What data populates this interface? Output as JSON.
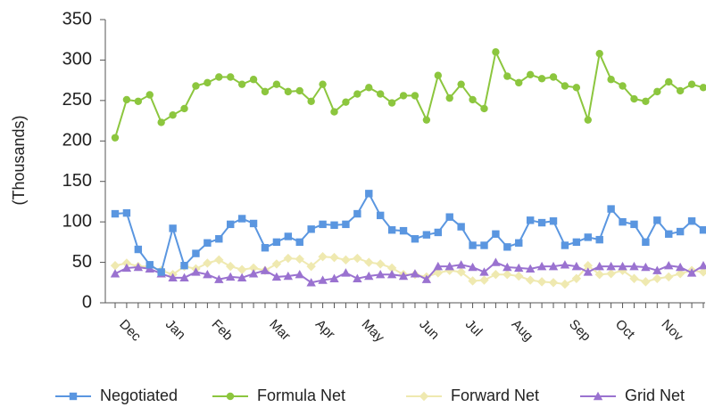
{
  "chart_data": {
    "type": "line",
    "y_label": "(Thousands)",
    "categories": [
      null,
      "Dec",
      null,
      null,
      null,
      "Jan",
      null,
      null,
      null,
      "Feb",
      null,
      null,
      null,
      null,
      "Mar",
      null,
      null,
      null,
      "Apr",
      null,
      null,
      null,
      "May",
      null,
      null,
      null,
      null,
      "Jun",
      null,
      null,
      null,
      "Jul",
      null,
      null,
      null,
      "Aug",
      null,
      null,
      null,
      null,
      "Sep",
      null,
      null,
      null,
      "Oct",
      null,
      null,
      null,
      "Nov",
      null,
      null,
      null
    ],
    "ylim": [
      0,
      350
    ],
    "yticks": [
      0,
      50,
      100,
      150,
      200,
      250,
      300,
      350
    ],
    "legend": "bottom",
    "series": [
      {
        "name": "Negotiated",
        "color": "#5a96e0",
        "marker": "square",
        "values": [
          110,
          111,
          66,
          47,
          38,
          92,
          46,
          61,
          74,
          79,
          97,
          104,
          98,
          68,
          75,
          82,
          75,
          91,
          97,
          96,
          97,
          110,
          135,
          108,
          90,
          89,
          79,
          84,
          87,
          106,
          94,
          71,
          71,
          85,
          69,
          74,
          102,
          99,
          101,
          71,
          75,
          81,
          78,
          116,
          100,
          97,
          75,
          102,
          85,
          88,
          101,
          90
        ]
      },
      {
        "name": "Formula Net",
        "color": "#8cc63e",
        "marker": "circle",
        "values": [
          204,
          251,
          249,
          257,
          223,
          232,
          240,
          268,
          272,
          279,
          279,
          270,
          276,
          261,
          270,
          261,
          262,
          249,
          270,
          236,
          248,
          258,
          266,
          258,
          247,
          256,
          256,
          226,
          281,
          253,
          270,
          251,
          240,
          310,
          280,
          272,
          282,
          277,
          279,
          268,
          266,
          226,
          308,
          276,
          268,
          252,
          249,
          261,
          273,
          262,
          270,
          266
        ]
      },
      {
        "name": "Forward Net",
        "color": "#efe9b0",
        "marker": "diamond",
        "values": [
          46,
          49,
          45,
          45,
          40,
          35,
          45,
          42,
          49,
          53,
          45,
          41,
          43,
          40,
          48,
          55,
          54,
          45,
          57,
          56,
          53,
          55,
          50,
          48,
          43,
          35,
          35,
          32,
          37,
          40,
          38,
          27,
          28,
          35,
          35,
          33,
          28,
          26,
          25,
          23,
          30,
          46,
          35,
          36,
          40,
          30,
          26,
          30,
          32,
          36,
          40,
          38
        ]
      },
      {
        "name": "Grid Net",
        "color": "#9a72d0",
        "marker": "triangle",
        "values": [
          36,
          43,
          44,
          42,
          36,
          31,
          31,
          38,
          35,
          29,
          32,
          31,
          36,
          40,
          32,
          33,
          35,
          25,
          28,
          30,
          37,
          30,
          33,
          35,
          35,
          33,
          36,
          29,
          45,
          45,
          47,
          44,
          38,
          50,
          44,
          43,
          42,
          45,
          45,
          47,
          45,
          38,
          45,
          45,
          45,
          45,
          44,
          40,
          46,
          44,
          37,
          46
        ]
      }
    ]
  }
}
